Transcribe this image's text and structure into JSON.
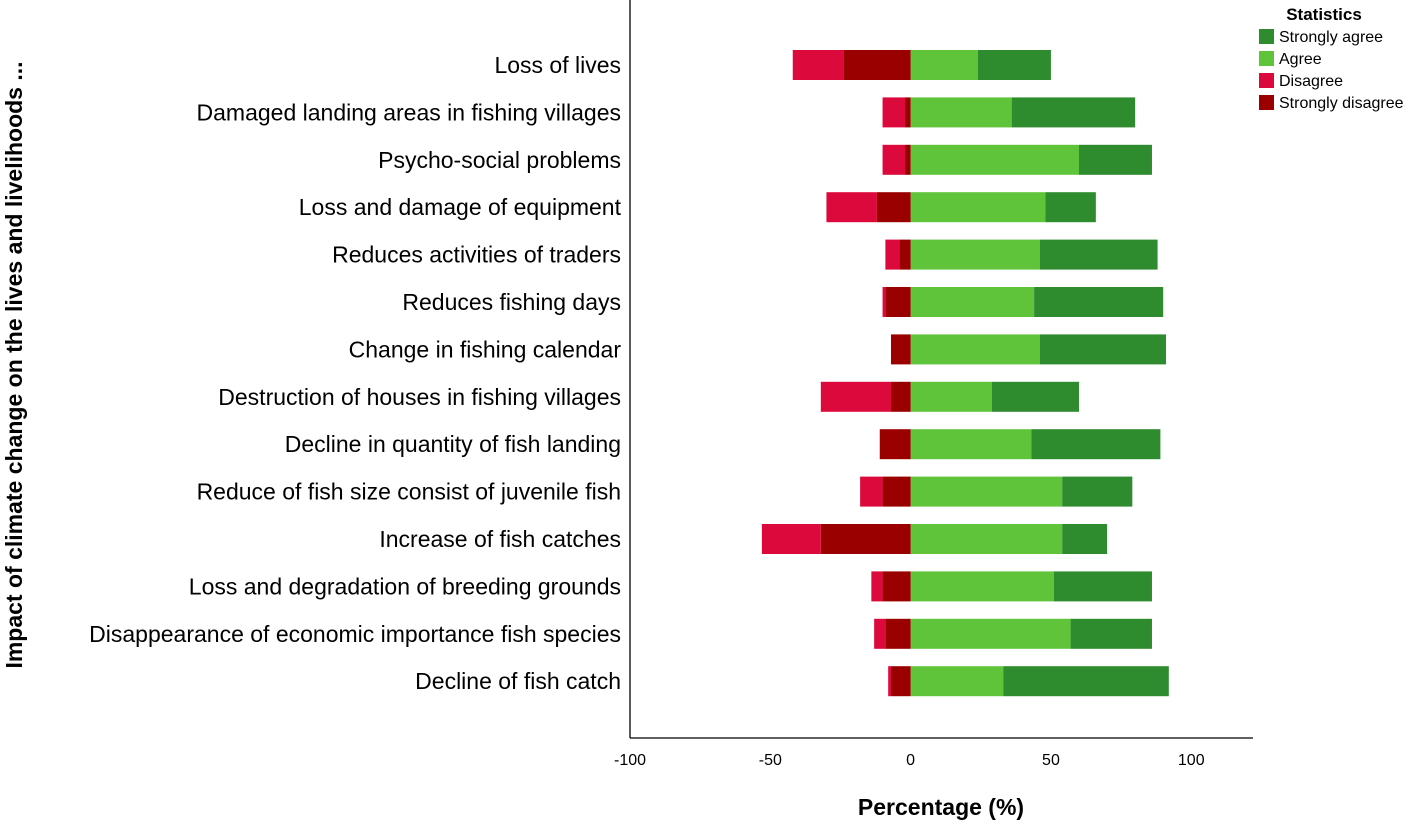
{
  "chart_data": {
    "type": "bar",
    "orientation": "horizontal",
    "stacked": "diverging",
    "xlabel": "Percentage (%)",
    "ylabel": "Impact of climate change on the lives and livelihoods ...",
    "xlim": [
      -100,
      122
    ],
    "xticks": [
      -100,
      -50,
      0,
      50,
      100
    ],
    "xtick_labels": [
      "-100",
      "-50",
      "0",
      "50",
      "100"
    ],
    "grid": false,
    "legend": {
      "title": "Statistics",
      "position": "top-right"
    },
    "categories": [
      "Loss of lives",
      "Damaged landing areas in fishing villages",
      "Psycho-social problems",
      "Loss and damage of equipment",
      "Reduces activities of traders",
      "Reduces fishing days",
      "Change in fishing calendar",
      "Destruction of houses in fishing villages",
      "Decline in quantity of fish landing",
      "Reduce of fish size consist of juvenile fish",
      "Increase of fish catches",
      "Loss and degradation of breeding grounds",
      "Disappearance of economic importance fish species",
      "Decline of fish catch"
    ],
    "series": [
      {
        "name": "Strongly agree",
        "color": "#2e8b2e",
        "side": "positive",
        "values": [
          26,
          44,
          26,
          18,
          42,
          46,
          45,
          31,
          46,
          25,
          16,
          35,
          29,
          59
        ]
      },
      {
        "name": "Agree",
        "color": "#5fc43a",
        "side": "positive",
        "values": [
          24,
          36,
          60,
          48,
          46,
          44,
          46,
          29,
          43,
          54,
          54,
          51,
          57,
          33
        ]
      },
      {
        "name": "Disagree",
        "color": "#dc0a3c",
        "side": "negative",
        "values": [
          18,
          8,
          8,
          18,
          5,
          1,
          0,
          25,
          0,
          8,
          21,
          4,
          4,
          1
        ]
      },
      {
        "name": "Strongly disagree",
        "color": "#9b0000",
        "side": "negative",
        "values": [
          24,
          2,
          2,
          12,
          4,
          9,
          7,
          7,
          11,
          10,
          32,
          10,
          9,
          7
        ]
      }
    ]
  }
}
